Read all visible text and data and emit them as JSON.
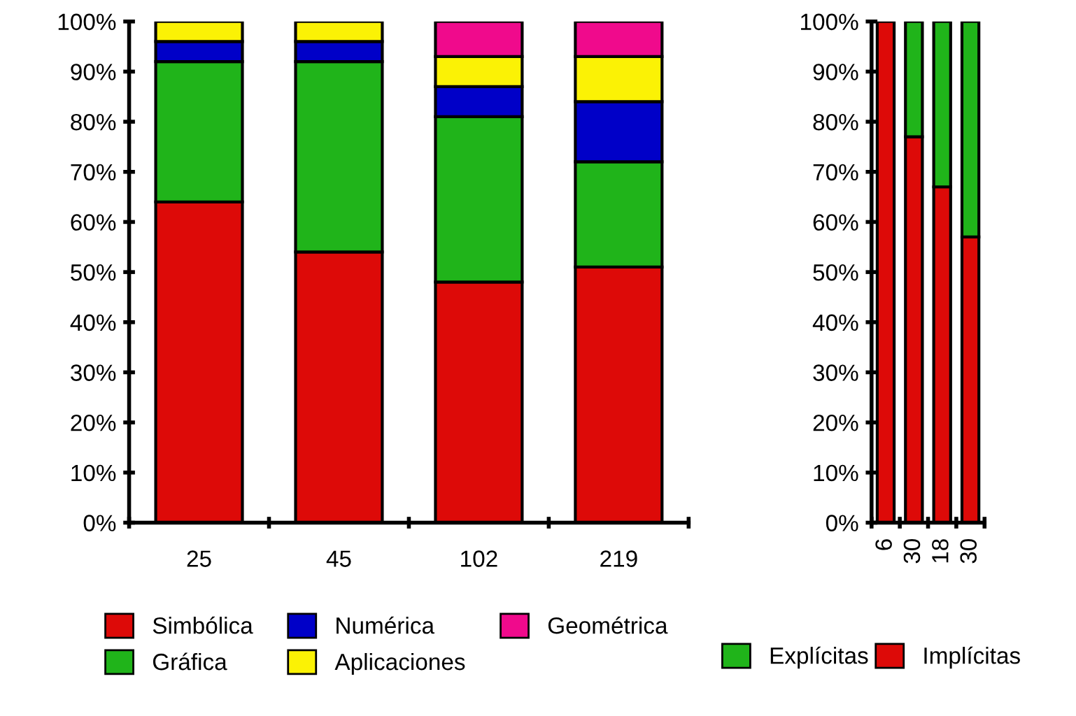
{
  "chart_data": [
    {
      "type": "bar",
      "stacked": true,
      "categories": [
        "25",
        "45",
        "102",
        "219"
      ],
      "ylim": [
        0,
        100
      ],
      "yticks": [
        {
          "value": 0,
          "label": "0%"
        },
        {
          "value": 10,
          "label": "10%"
        },
        {
          "value": 20,
          "label": "20%"
        },
        {
          "value": 30,
          "label": "30%"
        },
        {
          "value": 40,
          "label": "40%"
        },
        {
          "value": 50,
          "label": "50%"
        },
        {
          "value": 60,
          "label": "60%"
        },
        {
          "value": 70,
          "label": "70%"
        },
        {
          "value": 80,
          "label": "80%"
        },
        {
          "value": 90,
          "label": "90%"
        },
        {
          "value": 100,
          "label": "100%"
        }
      ],
      "legend": "bottom",
      "grid": false,
      "series": [
        {
          "name": "Simbólica",
          "color": "#dd0a08",
          "values": [
            64,
            54,
            48,
            51
          ]
        },
        {
          "name": "Gráfica",
          "color": "#20b41a",
          "values": [
            28,
            38,
            33,
            21
          ]
        },
        {
          "name": "Numérica",
          "color": "#0000c8",
          "values": [
            4,
            4,
            6,
            12
          ]
        },
        {
          "name": "Aplicaciones",
          "color": "#fbf205",
          "values": [
            4,
            4,
            6,
            9
          ]
        },
        {
          "name": "Geométrica",
          "color": "#f00a8c",
          "values": [
            0,
            0,
            7,
            7
          ]
        }
      ]
    },
    {
      "type": "bar",
      "stacked": true,
      "categories": [
        "6",
        "30",
        "18",
        "30"
      ],
      "ylim": [
        0,
        100
      ],
      "yticks": [
        {
          "value": 0,
          "label": "0%"
        },
        {
          "value": 10,
          "label": "10%"
        },
        {
          "value": 20,
          "label": "20%"
        },
        {
          "value": 30,
          "label": "30%"
        },
        {
          "value": 40,
          "label": "40%"
        },
        {
          "value": 50,
          "label": "50%"
        },
        {
          "value": 60,
          "label": "60%"
        },
        {
          "value": 70,
          "label": "70%"
        },
        {
          "value": 80,
          "label": "80%"
        },
        {
          "value": 90,
          "label": "90%"
        },
        {
          "value": 100,
          "label": "100%"
        }
      ],
      "legend": "bottom",
      "grid": false,
      "series": [
        {
          "name": "Implícitas",
          "color": "#dd0a08",
          "values": [
            100,
            77,
            67,
            57
          ]
        },
        {
          "name": "Explícitas",
          "color": "#20b41a",
          "values": [
            0,
            23,
            33,
            43
          ]
        }
      ]
    }
  ]
}
